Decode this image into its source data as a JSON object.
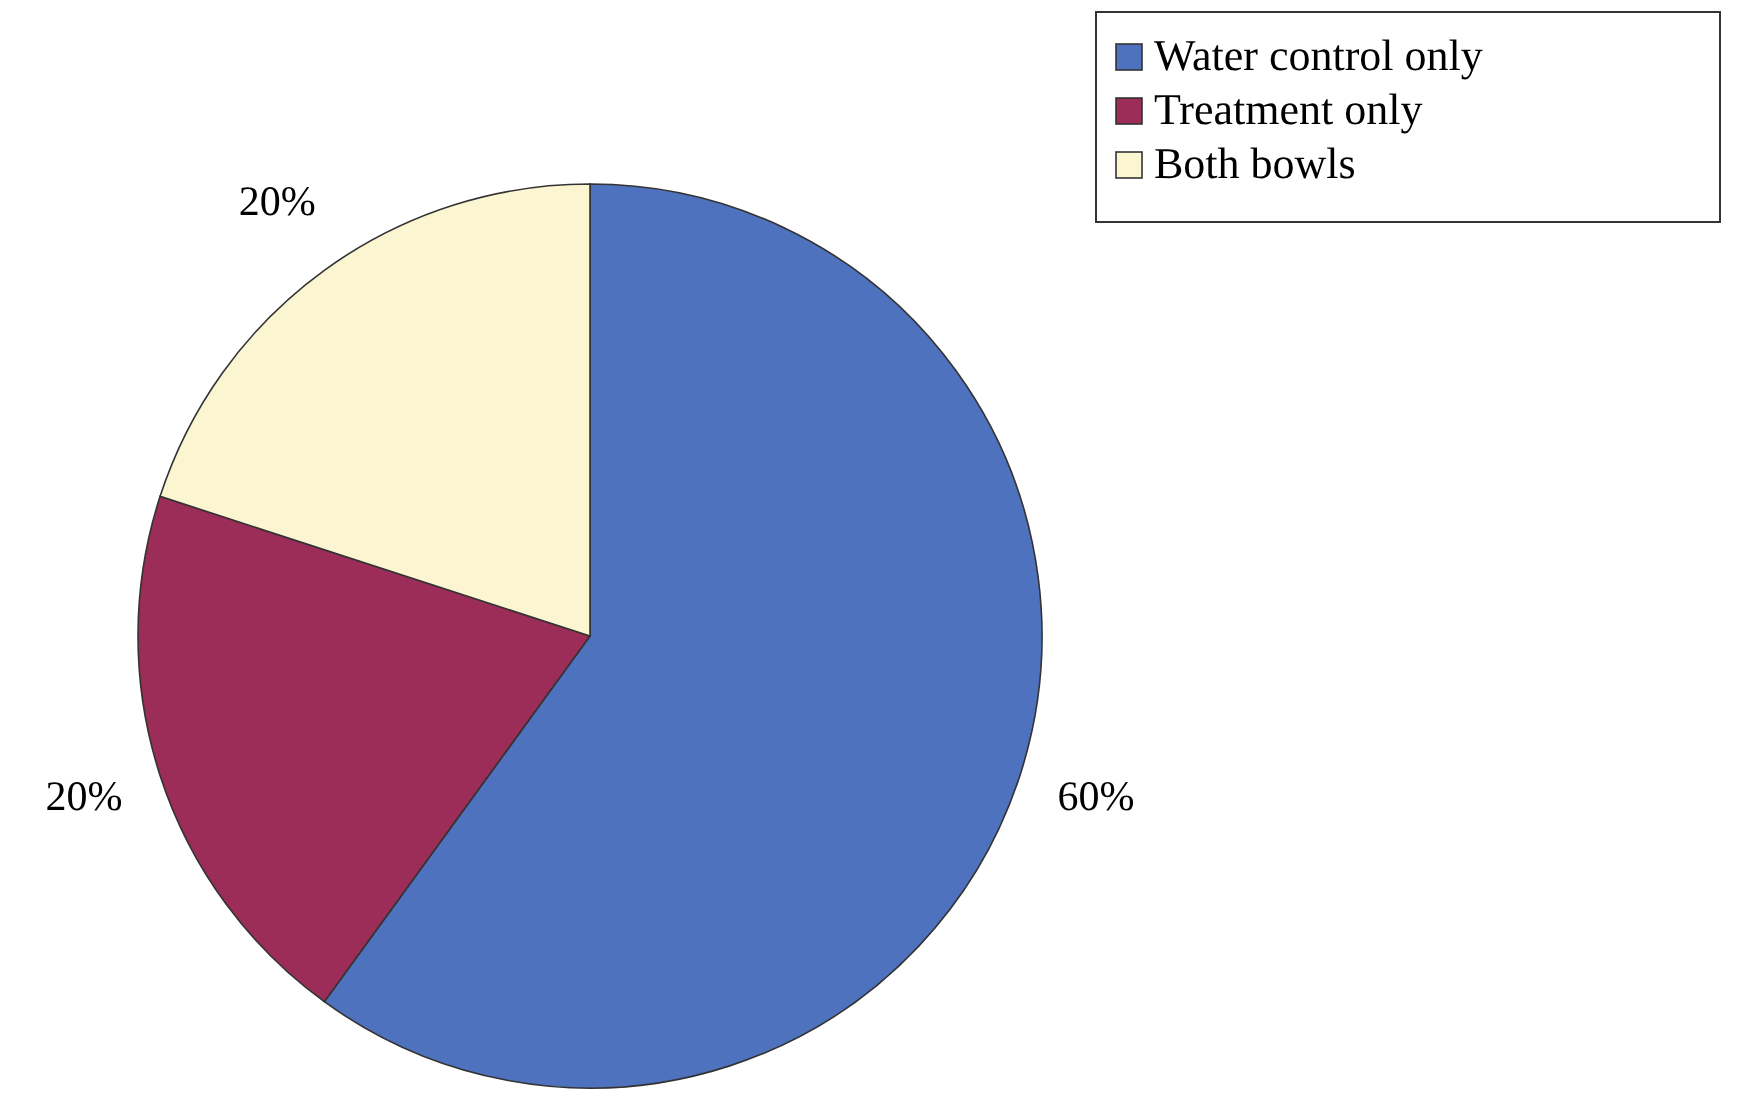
{
  "chart_data": {
    "type": "pie",
    "categories": [
      "Water control only",
      "Treatment only",
      "Both bowls"
    ],
    "values": [
      60,
      20,
      20
    ],
    "colors": [
      "#4f72be",
      "#9c2c58",
      "#fbf5d2"
    ],
    "value_labels": [
      "60%",
      "20%",
      "20%"
    ],
    "legend": "top right"
  }
}
